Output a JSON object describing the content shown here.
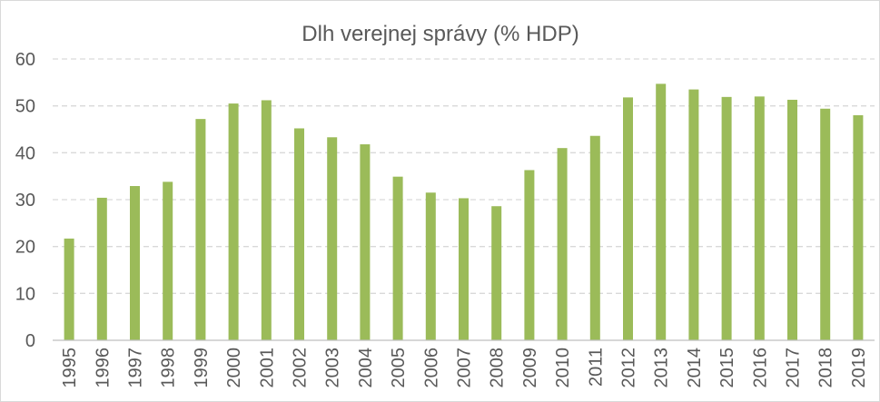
{
  "chart_data": {
    "type": "bar",
    "title": "Dlh verejnej správy (% HDP)",
    "xlabel": "",
    "ylabel": "",
    "categories": [
      "1995",
      "1996",
      "1997",
      "1998",
      "1999",
      "2000",
      "2001",
      "2002",
      "2003",
      "2004",
      "2005",
      "2006",
      "2007",
      "2008",
      "2009",
      "2010",
      "2011",
      "2012",
      "2013",
      "2014",
      "2015",
      "2016",
      "2017",
      "2018",
      "2019"
    ],
    "values": [
      21.7,
      30.4,
      32.9,
      33.8,
      47.2,
      50.5,
      51.2,
      45.2,
      43.3,
      41.8,
      34.9,
      31.5,
      30.3,
      28.6,
      36.3,
      41.0,
      43.6,
      51.8,
      54.7,
      53.5,
      51.9,
      52.0,
      51.3,
      49.4,
      48.0
    ],
    "ylim": [
      0,
      60
    ],
    "yticks": [
      "0",
      "10",
      "20",
      "30",
      "40",
      "50",
      "60"
    ],
    "grid": true,
    "legend": "none",
    "colors": {
      "bar": "#9bbb59",
      "grid": "#d9d9d9",
      "axis": "#bfbfbf",
      "text": "#595959"
    }
  }
}
